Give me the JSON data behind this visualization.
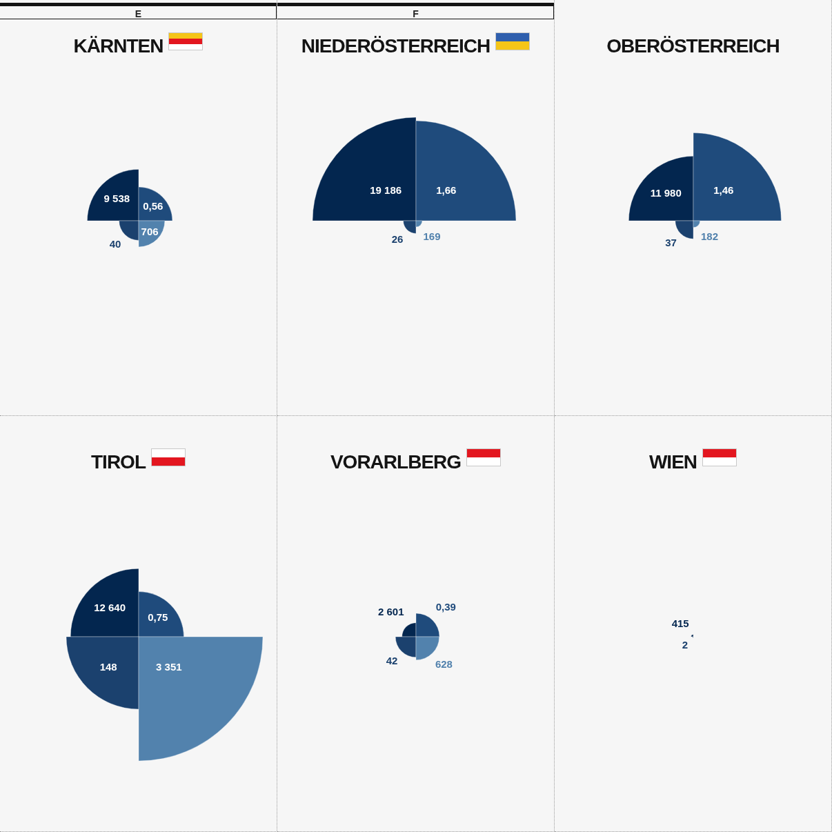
{
  "chart_data": [
    {
      "type": "other",
      "title": "KÄRNTEN",
      "annotations": [
        "E"
      ],
      "values": [
        9538,
        0.56,
        40,
        706
      ],
      "colors": [
        "#03264f",
        "#1f4b7c",
        "#1b416e",
        "#5282ad"
      ],
      "value_labels": [
        "9 538",
        "0,56",
        "40",
        "706"
      ]
    },
    {
      "type": "other",
      "title": "NIEDERÖSTERREICH",
      "annotations": [
        "F"
      ],
      "values": [
        19186,
        1.66,
        26,
        169
      ],
      "colors": [
        "#03264f",
        "#1f4b7c",
        "#1b416e",
        "#5282ad"
      ],
      "value_labels": [
        "19 186",
        "1,66",
        "26",
        "169"
      ]
    },
    {
      "type": "other",
      "title": "OBERÖSTERREICH",
      "values": [
        11980,
        1.46,
        37,
        182
      ],
      "colors": [
        "#03264f",
        "#1f4b7c",
        "#1b416e",
        "#5282ad"
      ],
      "value_labels": [
        "11 980",
        "1,46",
        "37",
        "182"
      ]
    },
    {
      "type": "other",
      "title": "TIROL",
      "values": [
        12640,
        0.75,
        148,
        3351
      ],
      "colors": [
        "#03264f",
        "#1f4b7c",
        "#1b416e",
        "#5282ad"
      ],
      "value_labels": [
        "12 640",
        "0,75",
        "148",
        "3 351"
      ]
    },
    {
      "type": "other",
      "title": "VORARLBERG",
      "values": [
        2601,
        0.39,
        42,
        628
      ],
      "colors": [
        "#03264f",
        "#1f4b7c",
        "#1b416e",
        "#5282ad"
      ],
      "value_labels": [
        "2 601",
        "0,39",
        "42",
        "628"
      ]
    },
    {
      "type": "other",
      "title": "WIEN",
      "values": [
        415,
        null,
        2
      ],
      "colors": [
        "#03264f",
        null,
        "#1b416e"
      ],
      "value_labels": [
        "415",
        null,
        "2"
      ]
    }
  ]
}
